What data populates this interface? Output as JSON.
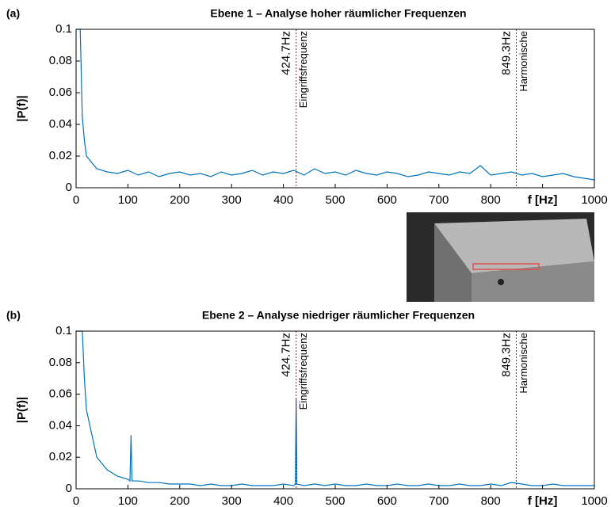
{
  "chart_data": [
    {
      "type": "line",
      "panel_label": "(a)",
      "title": "Ebene 1 – Analyse hoher räumlicher Frequenzen",
      "ylabel": "|P(f)|",
      "xlim": [
        0,
        1000
      ],
      "ylim": [
        0,
        0.1
      ],
      "xticks": [
        0,
        100,
        200,
        300,
        400,
        500,
        600,
        700,
        800,
        {
          "value": 900,
          "label": "f [Hz]"
        },
        1000
      ],
      "yticks": [
        0,
        0.02,
        0.04,
        0.06,
        0.08,
        0.1
      ],
      "annotations": [
        {
          "x": 424.7,
          "label": "424.7Hz",
          "text": "Eingriffsfrequenz"
        },
        {
          "x": 849.3,
          "label": "849.3Hz",
          "text": "Harmonische"
        }
      ],
      "series": [
        {
          "color": "#0072bd",
          "x": [
            0,
            4,
            8,
            12,
            16,
            20,
            40,
            60,
            80,
            100,
            120,
            140,
            160,
            180,
            200,
            220,
            240,
            260,
            280,
            300,
            320,
            340,
            360,
            380,
            400,
            420,
            440,
            460,
            480,
            500,
            520,
            540,
            560,
            580,
            600,
            620,
            640,
            660,
            680,
            700,
            720,
            740,
            760,
            780,
            800,
            820,
            840,
            860,
            880,
            900,
            920,
            940,
            960,
            980,
            1000
          ],
          "values": [
            0.1,
            0.1,
            0.1,
            0.045,
            0.03,
            0.02,
            0.012,
            0.01,
            0.009,
            0.011,
            0.008,
            0.01,
            0.007,
            0.009,
            0.01,
            0.008,
            0.009,
            0.007,
            0.01,
            0.008,
            0.009,
            0.011,
            0.008,
            0.01,
            0.009,
            0.011,
            0.008,
            0.012,
            0.009,
            0.01,
            0.008,
            0.011,
            0.009,
            0.008,
            0.01,
            0.009,
            0.007,
            0.008,
            0.01,
            0.009,
            0.008,
            0.01,
            0.009,
            0.014,
            0.008,
            0.009,
            0.01,
            0.008,
            0.009,
            0.007,
            0.008,
            0.009,
            0.007,
            0.006,
            0.005
          ]
        }
      ]
    },
    {
      "type": "line",
      "panel_label": "(b)",
      "title": "Ebene 2 – Analyse niedriger räumlicher Frequenzen",
      "ylabel": "|P(f)|",
      "xlim": [
        0,
        1000
      ],
      "ylim": [
        0,
        0.1
      ],
      "xticks": [
        0,
        100,
        200,
        300,
        400,
        500,
        600,
        700,
        800,
        {
          "value": 900,
          "label": "f [Hz]"
        },
        1000
      ],
      "yticks": [
        0,
        0.02,
        0.04,
        0.06,
        0.08,
        0.1
      ],
      "annotations": [
        {
          "x": 424.7,
          "label": "424.7Hz",
          "text": "Eingriffsfrequenz"
        },
        {
          "x": 849.3,
          "label": "849.3Hz",
          "text": "Harmonische"
        }
      ],
      "series": [
        {
          "color": "#0072bd",
          "x": [
            0,
            4,
            8,
            12,
            16,
            20,
            40,
            60,
            80,
            100,
            104,
            106,
            108,
            120,
            140,
            160,
            180,
            200,
            220,
            240,
            260,
            280,
            300,
            320,
            340,
            360,
            380,
            400,
            420,
            423,
            424.7,
            426,
            440,
            460,
            480,
            500,
            520,
            540,
            560,
            580,
            600,
            620,
            640,
            660,
            680,
            700,
            720,
            740,
            760,
            780,
            800,
            820,
            840,
            860,
            880,
            900,
            920,
            940,
            960,
            980,
            1000
          ],
          "values": [
            0.1,
            0.1,
            0.1,
            0.1,
            0.07,
            0.05,
            0.02,
            0.012,
            0.008,
            0.006,
            0.005,
            0.034,
            0.005,
            0.005,
            0.004,
            0.004,
            0.003,
            0.003,
            0.003,
            0.002,
            0.003,
            0.002,
            0.002,
            0.003,
            0.002,
            0.002,
            0.002,
            0.003,
            0.002,
            0.003,
            0.057,
            0.003,
            0.002,
            0.003,
            0.002,
            0.003,
            0.002,
            0.002,
            0.003,
            0.002,
            0.002,
            0.003,
            0.002,
            0.002,
            0.003,
            0.002,
            0.002,
            0.003,
            0.002,
            0.002,
            0.003,
            0.002,
            0.004,
            0.003,
            0.002,
            0.002,
            0.003,
            0.002,
            0.002,
            0.002,
            0.002
          ]
        }
      ]
    }
  ]
}
